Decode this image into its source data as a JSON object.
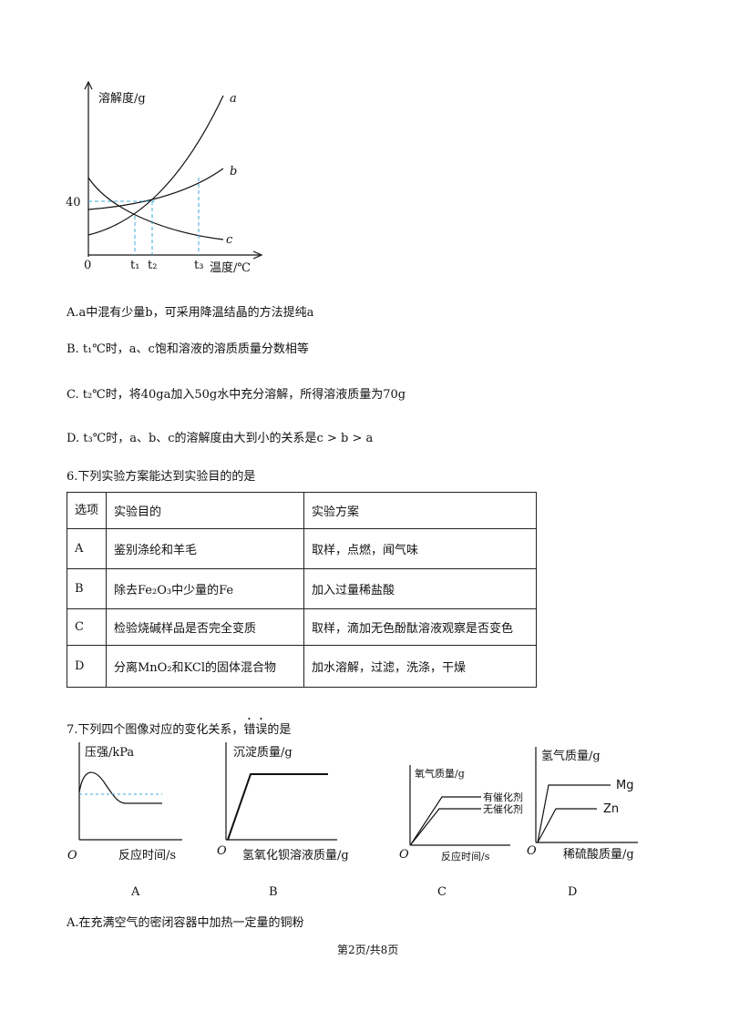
{
  "figure1": {
    "y_label": "溶解度/g",
    "x_label": "温度/℃",
    "curve_labels": [
      "a",
      "b",
      "c"
    ],
    "y_tick": "40",
    "origin": "0",
    "t_labels": [
      "t₁",
      "t₂",
      "t₃"
    ]
  },
  "q5_options": [
    "A.a中混有少量b，可采用降温结晶的方法提纯a",
    "B. t₁℃时，a、c饱和溶液的溶质质量分数相等",
    "C. t₂℃时，将40ga加入50g水中充分溶解，所得溶液质量为70g",
    "D. t₃℃时，a、b、c的溶解度由大到小的关系是c > b > a"
  ],
  "q6": {
    "stem": "6.下列实验方案能达到实验目的的是",
    "table": {
      "header": [
        "选项",
        "实验目的",
        "实验方案"
      ],
      "rows": [
        [
          "A",
          "鉴别涤纶和羊毛",
          "取样，点燃，闻气味"
        ],
        [
          "B",
          "除去Fe₂O₃中少量的Fe",
          "加入过量稀盐酸"
        ],
        [
          "C",
          "检验烧碱样品是否完全变质",
          "取样，滴加无色酚酞溶液观察是否变色"
        ],
        [
          "D",
          "分离MnO₂和KCl的固体混合物",
          "加水溶解，过滤，洗涤，干燥"
        ]
      ]
    }
  },
  "q7": {
    "stem_before": "7.下列四个图像对应的变化关系，",
    "stem_emph": "错误",
    "stem_after": "的是",
    "graphs": [
      {
        "y_label": "压强/kPa",
        "x_label": "反应时间/s",
        "origin": "O"
      },
      {
        "y_label": "沉淀质量/g",
        "x_label": "氢氧化钡溶液质量/g",
        "origin": "O"
      },
      {
        "y_label": "氧气质量/g",
        "x_label": "反应时间/s",
        "origin": "O",
        "lines": [
          "有催化剂",
          "无催化剂"
        ]
      },
      {
        "y_label": "氢气质量/g",
        "x_label": "稀硫酸质量/g",
        "origin": "O",
        "lines": [
          "Mg",
          "Zn"
        ]
      }
    ],
    "captions": [
      "A",
      "B",
      "C",
      "D"
    ],
    "option_a": "A.在充满空气的密闭容器中加热一定量的铜粉"
  },
  "footer": "第2页/共8页"
}
